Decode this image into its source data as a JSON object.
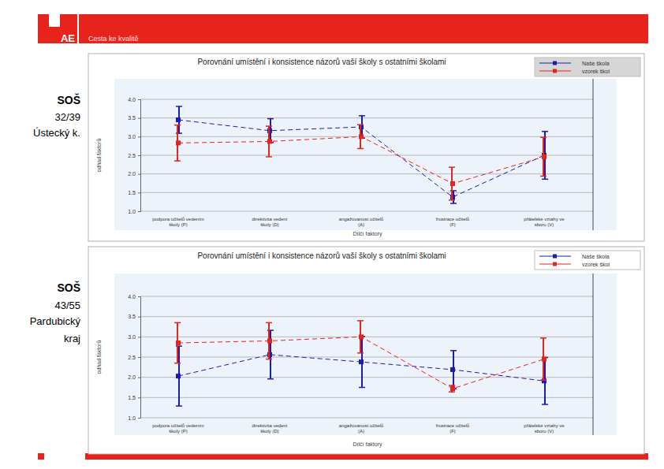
{
  "header": {
    "logo": "AE",
    "tagline": "Cesta ke kvalitě"
  },
  "chart_data": [
    {
      "type": "line",
      "title": "Porovnání umístění i konsistence názorů vaší školy s ostatními školami",
      "annotations": [
        "SOŠ",
        "32/39",
        "Ústecký k."
      ],
      "x_label": "Dílčí faktory",
      "y_label": "odhad faktorů",
      "categories": [
        "podpora učitelů vedením školy (P)",
        "direktivita vedení školy (D)",
        "angažovanost učitelů (A)",
        "frustrace učitelů (F)",
        "přátelské vztahy ve sboru (V)"
      ],
      "series": [
        {
          "name": "Naše škola",
          "color": "#1c1cb0",
          "marker": "square",
          "line_style": "dashed",
          "values": [
            3.45,
            3.16,
            3.26,
            1.38,
            2.5
          ],
          "errors": [
            0.36,
            0.32,
            0.3,
            0.17,
            0.64
          ]
        },
        {
          "name": "vzorek škol",
          "color": "#e8231c",
          "marker": "square",
          "line_style": "dashed",
          "values": [
            2.83,
            2.87,
            3.0,
            1.74,
            2.46
          ],
          "errors": [
            0.48,
            0.41,
            0.32,
            0.44,
            0.52
          ]
        }
      ],
      "ylim": [
        1,
        4
      ],
      "yticks": [
        {
          "value": 1,
          "label": "1.0"
        },
        {
          "value": 1.5,
          "label": "1.5"
        },
        {
          "value": 2,
          "label": "2.0"
        },
        {
          "value": 2.5,
          "label": "2.5"
        },
        {
          "value": 3,
          "label": "3.0"
        },
        {
          "value": 3.5,
          "label": "3.5"
        },
        {
          "value": 4,
          "label": "4.0"
        }
      ],
      "grid": true,
      "legend": "top-right"
    },
    {
      "type": "line",
      "title": "Porovnání umístění i konsistence názorů vaší školy s ostatními školami",
      "annotations": [
        "SOŠ",
        "43/55",
        "Pardubický",
        "kraj"
      ],
      "x_label": "Dílčí faktory",
      "y_label": "odhad faktorů",
      "categories": [
        "podpora učitelů vedením školy (P)",
        "direktivita vedení školy (D)",
        "angažovanost učitelů (A)",
        "frustrace učitelů (F)",
        "přátelské vztahy ve sboru (V)"
      ],
      "series": [
        {
          "name": "Naše škola",
          "color": "#1c1cb0",
          "marker": "square",
          "line_style": "dashed",
          "values": [
            2.03,
            2.56,
            2.38,
            2.19,
            1.91
          ],
          "errors": [
            0.74,
            0.6,
            0.63,
            0.47,
            0.58
          ]
        },
        {
          "name": "vzorek škol",
          "color": "#e8231c",
          "marker": "square",
          "line_style": "dashed",
          "values": [
            2.85,
            2.9,
            3.0,
            1.72,
            2.45
          ],
          "errors": [
            0.5,
            0.45,
            0.4,
            0.08,
            0.52
          ]
        }
      ],
      "ylim": [
        1,
        4
      ],
      "yticks": [
        {
          "value": 1,
          "label": "1.0"
        },
        {
          "value": 1.5,
          "label": "1.5"
        },
        {
          "value": 2,
          "label": "2.0"
        },
        {
          "value": 2.5,
          "label": "2.5"
        },
        {
          "value": 3,
          "label": "3.0"
        },
        {
          "value": 3.5,
          "label": "3.5"
        },
        {
          "value": 4,
          "label": "4.0"
        }
      ],
      "grid": true,
      "legend": "top-right"
    }
  ]
}
